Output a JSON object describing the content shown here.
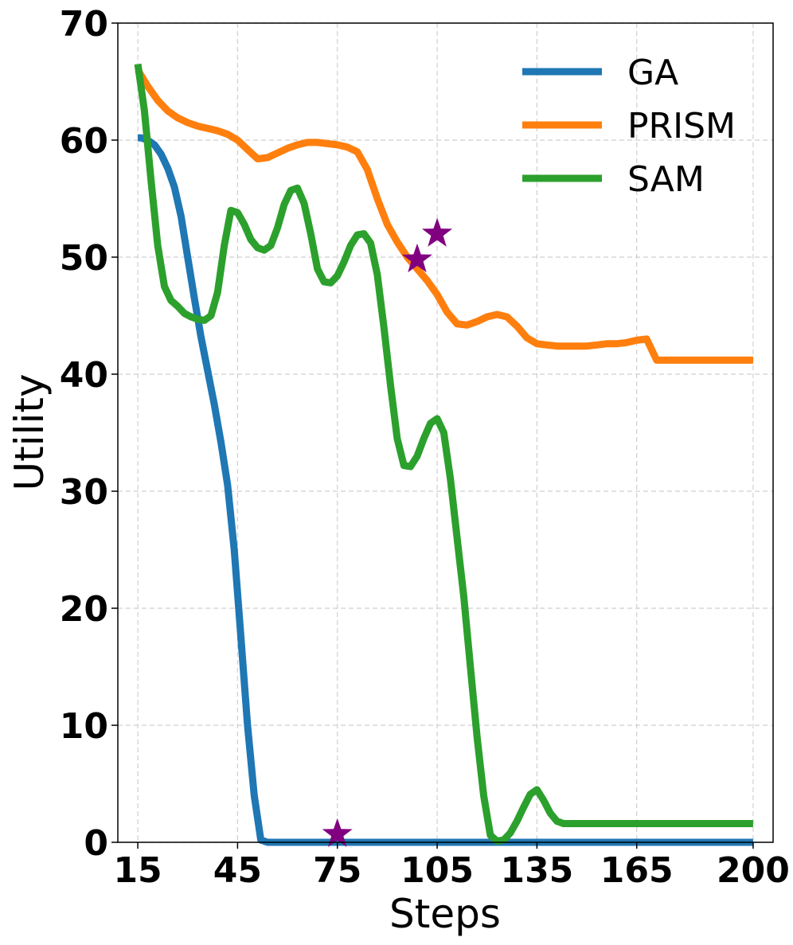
{
  "chart_data": {
    "type": "line",
    "xlabel": "Steps",
    "ylabel": "Utility",
    "xlim": [
      9,
      206
    ],
    "ylim": [
      0,
      70
    ],
    "x_ticks": [
      15,
      45,
      75,
      105,
      135,
      165,
      200
    ],
    "x_tick_labels": [
      "15",
      "45",
      "75",
      "105",
      "135",
      "165",
      "200"
    ],
    "y_ticks": [
      0,
      10,
      20,
      30,
      40,
      50,
      60,
      70
    ],
    "y_tick_labels": [
      "0",
      "10",
      "20",
      "30",
      "40",
      "50",
      "60",
      "70"
    ],
    "grid": true,
    "legend_position": "top-right",
    "series": [
      {
        "name": "GA",
        "color": "#1f77b4",
        "x": [
          15,
          16,
          18,
          20,
          22,
          24,
          26,
          28,
          30,
          32,
          34,
          36,
          38,
          40,
          42,
          44,
          46,
          48,
          50,
          52,
          54,
          56,
          58,
          60,
          62,
          64,
          66,
          70,
          75,
          90,
          105,
          120,
          135,
          150,
          165,
          180,
          195,
          200
        ],
        "y": [
          60.2,
          60.2,
          60.0,
          59.6,
          58.8,
          57.6,
          56.0,
          53.5,
          50.0,
          46.5,
          43.2,
          40.3,
          37.4,
          34.2,
          30.5,
          25.0,
          17.5,
          10.0,
          4.0,
          0.2,
          0,
          0,
          0,
          0,
          0,
          0,
          0,
          0,
          0,
          0,
          0,
          0,
          0,
          0,
          0,
          0,
          0,
          0
        ]
      },
      {
        "name": "PRISM",
        "color": "#ff7f0e",
        "x": [
          15,
          18,
          21,
          24,
          27,
          30,
          33,
          36,
          39,
          42,
          45,
          48,
          51,
          54,
          57,
          60,
          63,
          66,
          69,
          72,
          75,
          78,
          81,
          84,
          87,
          90,
          93,
          96,
          99,
          102,
          105,
          108,
          111,
          114,
          117,
          120,
          123,
          126,
          129,
          132,
          135,
          138,
          141,
          144,
          147,
          150,
          153,
          156,
          159,
          162,
          165,
          168,
          171,
          174,
          177,
          180,
          183,
          186,
          189,
          192,
          195,
          198,
          200
        ],
        "y": [
          66.0,
          64.6,
          63.4,
          62.5,
          61.9,
          61.5,
          61.2,
          61.0,
          60.8,
          60.5,
          60.0,
          59.2,
          58.4,
          58.5,
          58.9,
          59.3,
          59.6,
          59.8,
          59.8,
          59.7,
          59.6,
          59.4,
          59.0,
          57.5,
          55.0,
          52.8,
          51.3,
          50.0,
          49.0,
          48.0,
          46.8,
          45.3,
          44.3,
          44.2,
          44.5,
          44.9,
          45.1,
          44.9,
          44.1,
          43.1,
          42.6,
          42.5,
          42.4,
          42.4,
          42.4,
          42.4,
          42.5,
          42.6,
          42.6,
          42.7,
          42.9,
          43.0,
          41.2,
          41.2,
          41.2,
          41.2,
          41.2,
          41.2,
          41.2,
          41.2,
          41.2,
          41.2,
          41.2
        ]
      },
      {
        "name": "SAM",
        "color": "#2ca02c",
        "x": [
          15,
          17,
          19,
          21,
          23,
          25,
          27,
          29,
          31,
          33,
          35,
          37,
          39,
          41,
          43,
          45,
          47,
          49,
          51,
          53,
          55,
          57,
          59,
          61,
          63,
          65,
          67,
          69,
          71,
          73,
          75,
          77,
          79,
          81,
          83,
          85,
          87,
          89,
          91,
          93,
          95,
          97,
          99,
          101,
          103,
          105,
          107,
          109,
          111,
          113,
          115,
          117,
          119,
          121,
          123,
          125,
          127,
          129,
          131,
          133,
          135,
          137,
          139,
          141,
          143,
          145,
          147,
          149,
          151,
          153,
          155,
          157,
          159,
          161,
          163,
          165,
          167,
          169,
          171,
          173,
          175,
          177,
          179,
          181,
          183,
          185,
          187,
          189,
          191,
          193,
          195,
          197,
          200
        ],
        "y": [
          66.5,
          62.5,
          56.5,
          51.0,
          47.5,
          46.3,
          45.8,
          45.2,
          44.9,
          44.7,
          44.6,
          45.0,
          47.0,
          51.0,
          54.0,
          53.8,
          52.8,
          51.5,
          50.8,
          50.6,
          51.0,
          52.5,
          54.5,
          55.7,
          55.9,
          54.6,
          52.0,
          49.0,
          47.9,
          47.8,
          48.4,
          49.6,
          51.0,
          51.9,
          52.0,
          51.2,
          48.5,
          44.0,
          39.0,
          34.5,
          32.2,
          32.1,
          33.0,
          34.5,
          35.8,
          36.2,
          35.0,
          31.0,
          26.0,
          21.0,
          15.0,
          9.0,
          4.0,
          0.6,
          0.1,
          0.2,
          0.8,
          1.8,
          3.0,
          4.1,
          4.5,
          3.6,
          2.5,
          1.8,
          1.6,
          1.6,
          1.6,
          1.6,
          1.6,
          1.6,
          1.6,
          1.6,
          1.6,
          1.6,
          1.6,
          1.6,
          1.6,
          1.6,
          1.6,
          1.6,
          1.6,
          1.6,
          1.6,
          1.6,
          1.6,
          1.6,
          1.6,
          1.6,
          1.6,
          1.6,
          1.6,
          1.6,
          1.6
        ]
      }
    ],
    "markers": [
      {
        "x": 75,
        "y": 0.7,
        "color": "#800080",
        "shape": "star"
      },
      {
        "x": 99,
        "y": 49.8,
        "color": "#800080",
        "shape": "star"
      },
      {
        "x": 105,
        "y": 52.0,
        "color": "#800080",
        "shape": "star"
      }
    ]
  }
}
